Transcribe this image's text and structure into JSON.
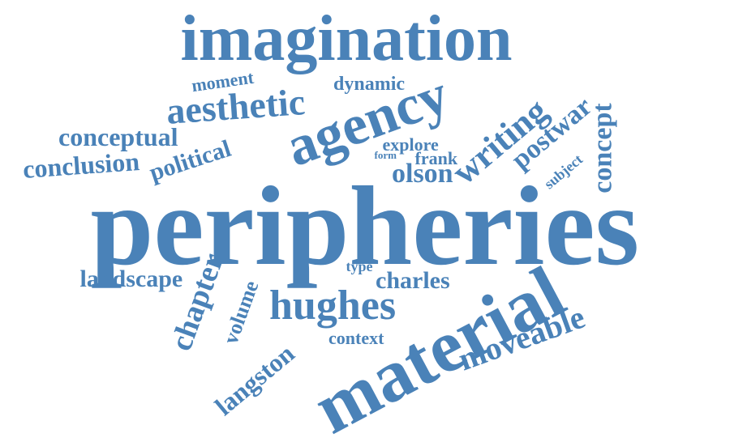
{
  "palette": {
    "word_color": "#4a82b8",
    "background": "#ffffff"
  },
  "words": [
    {
      "text": "imagination"
    },
    {
      "text": "moment"
    },
    {
      "text": "dynamic"
    },
    {
      "text": "aesthetic"
    },
    {
      "text": "agency"
    },
    {
      "text": "conceptual"
    },
    {
      "text": "conclusion"
    },
    {
      "text": "political"
    },
    {
      "text": "explore"
    },
    {
      "text": "form"
    },
    {
      "text": "frank"
    },
    {
      "text": "olson"
    },
    {
      "text": "writing"
    },
    {
      "text": "postwar"
    },
    {
      "text": "subject"
    },
    {
      "text": "concept"
    },
    {
      "text": "peripheries"
    },
    {
      "text": "landscape"
    },
    {
      "text": "chapter"
    },
    {
      "text": "volume"
    },
    {
      "text": "type"
    },
    {
      "text": "charles"
    },
    {
      "text": "hughes"
    },
    {
      "text": "langston"
    },
    {
      "text": "context"
    },
    {
      "text": "material"
    },
    {
      "text": "moveable"
    }
  ]
}
